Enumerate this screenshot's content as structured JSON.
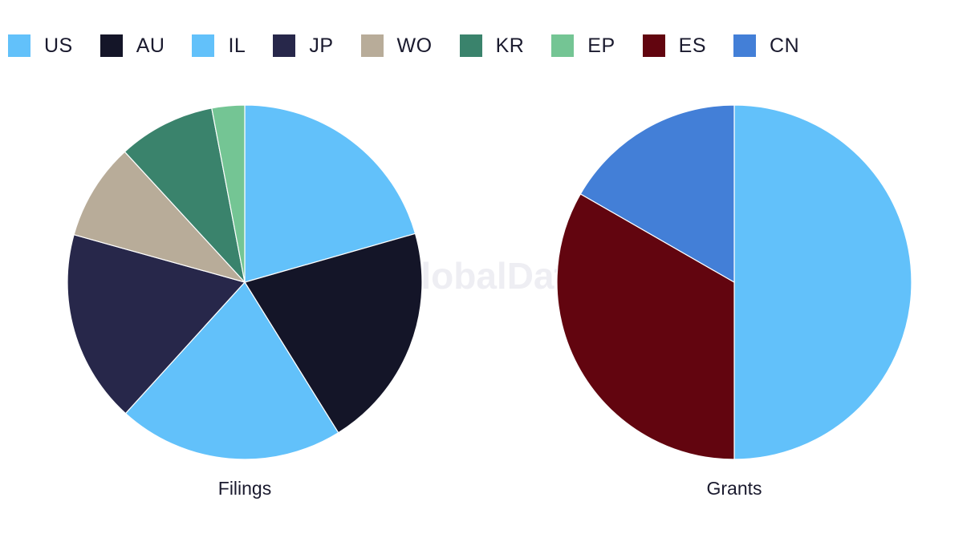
{
  "legend": [
    {
      "label": "US",
      "color": "#62C1FA"
    },
    {
      "label": "AU",
      "color": "#141528"
    },
    {
      "label": "IL",
      "color": "#62C1FA"
    },
    {
      "label": "JP",
      "color": "#27274A"
    },
    {
      "label": "WO",
      "color": "#B8AC99"
    },
    {
      "label": "KR",
      "color": "#3A836C"
    },
    {
      "label": "EP",
      "color": "#74C594"
    },
    {
      "label": "ES",
      "color": "#62050F"
    },
    {
      "label": "CN",
      "color": "#437FD7"
    }
  ],
  "watermark": "GlobalData",
  "chart_data": [
    {
      "type": "pie",
      "title": "Filings",
      "legend_position": "top-left",
      "slices": [
        {
          "label": "US",
          "value": 20.0,
          "color": "#62C1FA"
        },
        {
          "label": "AU",
          "value": 20.0,
          "color": "#141528"
        },
        {
          "label": "IL",
          "value": 20.0,
          "color": "#62C1FA"
        },
        {
          "label": "JP",
          "value": 17.1,
          "color": "#27274A"
        },
        {
          "label": "WO",
          "value": 8.6,
          "color": "#B8AC99"
        },
        {
          "label": "KR",
          "value": 8.6,
          "color": "#3A836C"
        },
        {
          "label": "EP",
          "value": 2.9,
          "color": "#74C594"
        }
      ]
    },
    {
      "type": "pie",
      "title": "Grants",
      "legend_position": "top-left",
      "slices": [
        {
          "label": "US",
          "value": 50.0,
          "color": "#62C1FA"
        },
        {
          "label": "ES",
          "value": 33.3,
          "color": "#62050F"
        },
        {
          "label": "CN",
          "value": 16.7,
          "color": "#437FD7"
        }
      ]
    }
  ]
}
